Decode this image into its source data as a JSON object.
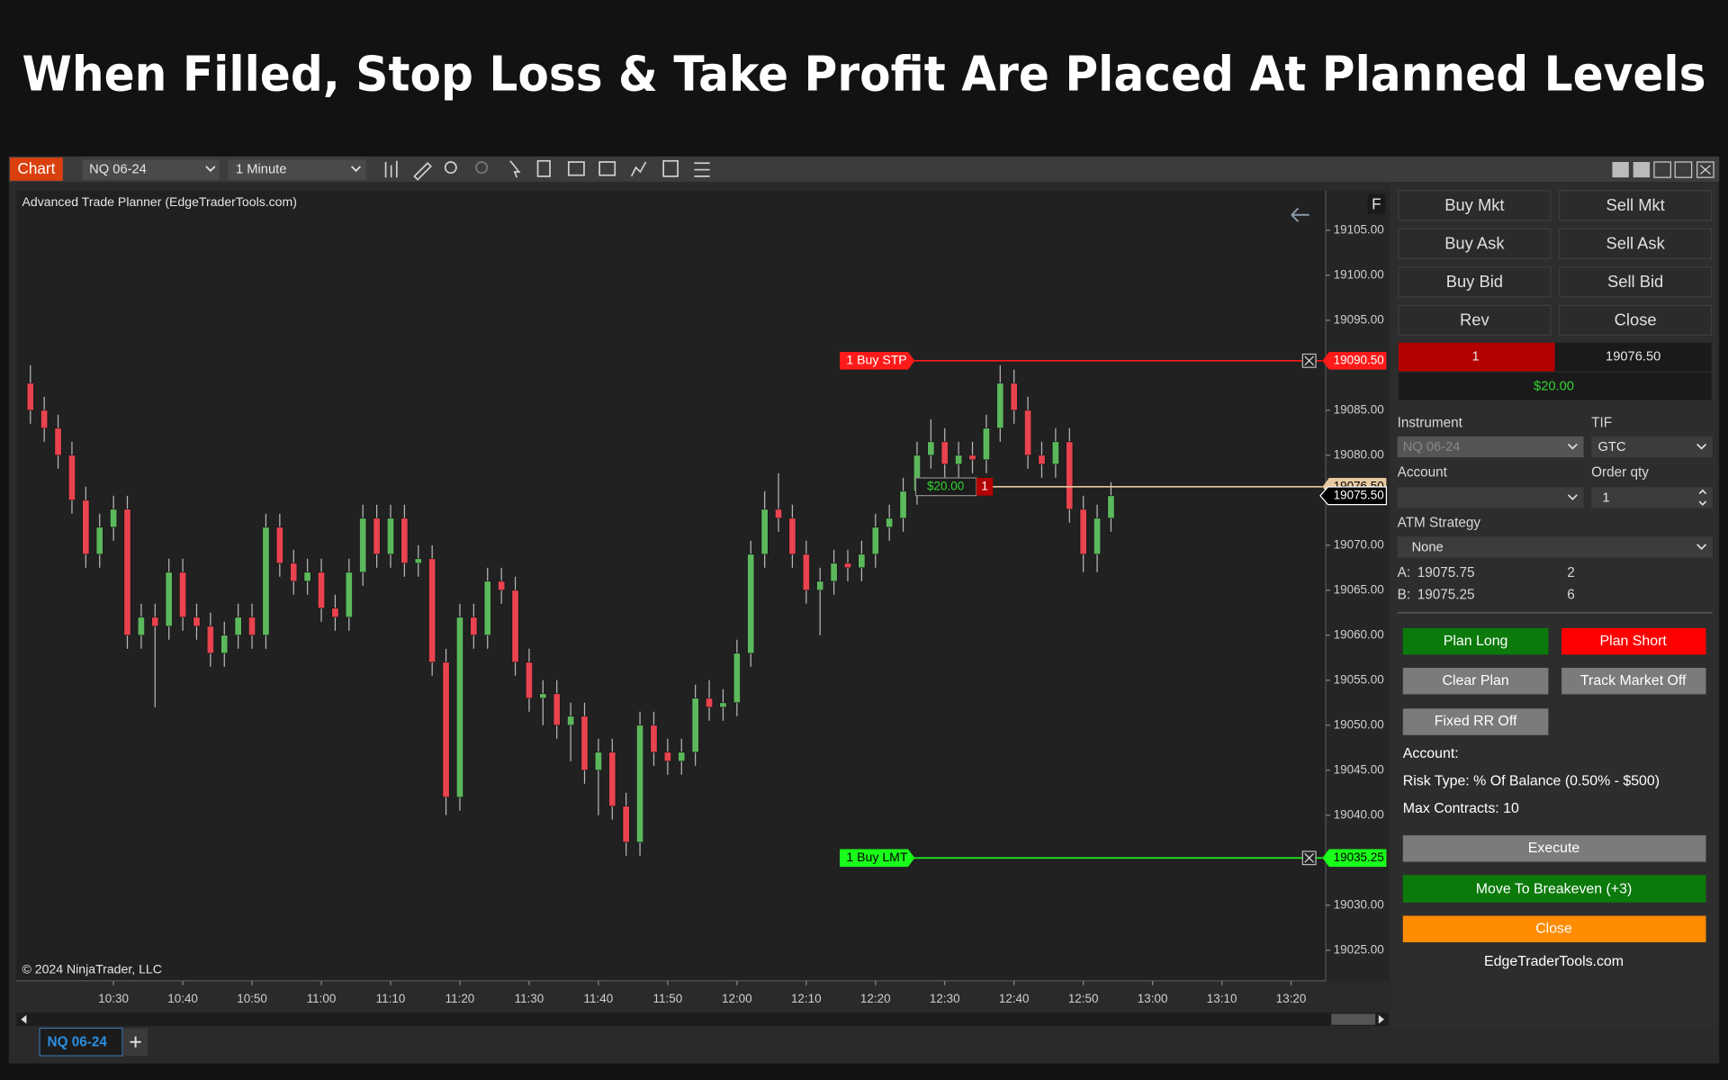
{
  "header": {
    "title": "When Filled, Stop Loss & Take Profit Are Placed At Planned Levels"
  },
  "window": {
    "tab": "Chart",
    "instrument": "NQ 06-24",
    "interval": "1 Minute",
    "indicator_label": "Advanced Trade Planner (EdgeTraderTools.com)",
    "copyright": "© 2024 NinjaTrader, LLC",
    "bottom_tab": "NQ 06-24",
    "f_label": "F"
  },
  "chart_data": {
    "type": "candlestick",
    "x": [
      "10:18",
      "10:20",
      "10:22",
      "10:24",
      "10:26",
      "10:28",
      "10:30",
      "10:32",
      "10:34",
      "10:36",
      "10:38",
      "10:40",
      "10:42",
      "10:44",
      "10:46",
      "10:48",
      "10:50",
      "10:52",
      "10:54",
      "10:56",
      "10:58",
      "11:00",
      "11:02",
      "11:04",
      "11:06",
      "11:08",
      "11:10",
      "11:12",
      "11:14",
      "11:16",
      "11:18",
      "11:20",
      "11:22",
      "11:24",
      "11:26",
      "11:28",
      "11:30",
      "11:32",
      "11:34",
      "11:36",
      "11:38",
      "11:40",
      "11:42",
      "11:44",
      "11:46",
      "11:48",
      "11:50",
      "11:52",
      "11:54",
      "11:56",
      "11:58",
      "12:00",
      "12:02",
      "12:04",
      "12:06",
      "12:08",
      "12:10",
      "12:12",
      "12:14",
      "12:16",
      "12:18",
      "12:20",
      "12:22",
      "12:24",
      "12:26",
      "12:28",
      "12:30",
      "12:32",
      "12:34",
      "12:36",
      "12:38",
      "12:40",
      "12:42",
      "12:44",
      "12:46",
      "12:48",
      "12:50",
      "12:52",
      "12:54"
    ],
    "open": [
      19088,
      19085,
      19083,
      19080,
      19075,
      19069,
      19072,
      19074,
      19060,
      19062,
      19061,
      19067,
      19062,
      19061,
      19058,
      19060,
      19062,
      19060,
      19072,
      19068,
      19066,
      19067,
      19063,
      19062,
      19067,
      19073,
      19069,
      19073,
      19068,
      19068.5,
      19057,
      19042,
      19062,
      19060,
      19066,
      19065,
      19057,
      19053,
      19053.5,
      19050,
      19051,
      19045,
      19047,
      19041,
      19037,
      19050,
      19047,
      19046,
      19047,
      19053,
      19052,
      19052.5,
      19058,
      19069,
      19074,
      19073,
      19069,
      19065,
      19066,
      19068,
      19067.5,
      19069,
      19072,
      19073,
      19076,
      19080,
      19081.5,
      19079,
      19080,
      19079.5,
      19083,
      19088,
      19085,
      19080,
      19079,
      19081.5,
      19074,
      19069,
      19073
    ],
    "high": [
      19090,
      19086.5,
      19084.5,
      19081.5,
      19076.5,
      19073.5,
      19075.5,
      19075.5,
      19063.5,
      19063.5,
      19068.5,
      19068.5,
      19063.5,
      19062.5,
      19061.5,
      19063.5,
      19063.5,
      19073.5,
      19073.5,
      19069.5,
      19068.5,
      19068.5,
      19064.5,
      19068.5,
      19074.5,
      19074.5,
      19074.5,
      19074.5,
      19070,
      19070,
      19058.5,
      19063.5,
      19063.5,
      19067.5,
      19067.5,
      19066.5,
      19058.5,
      19055,
      19055,
      19052.5,
      19052.5,
      19048.5,
      19048.5,
      19042.5,
      19051.5,
      19051.5,
      19048.5,
      19048.5,
      19054.5,
      19055,
      19054,
      19059.5,
      19070.5,
      19076,
      19078,
      19074.5,
      19070.5,
      19067.5,
      19069.5,
      19069.5,
      19070.5,
      19073.5,
      19074.5,
      19077.5,
      19081.5,
      19084,
      19083,
      19081.5,
      19081.5,
      19084.5,
      19090,
      19089.5,
      19086.5,
      19081.5,
      19083,
      19083,
      19075.5,
      19074.5,
      19077
    ],
    "low": [
      19083.5,
      19081.5,
      19078.5,
      19073.5,
      19067.5,
      19067.5,
      19070.5,
      19058.5,
      19058.5,
      19052,
      19059.5,
      19060.5,
      19059.5,
      19056.5,
      19056.5,
      19058.5,
      19058.5,
      19058.5,
      19066.5,
      19064.5,
      19064.5,
      19061.5,
      19060.5,
      19060.5,
      19065.5,
      19067.5,
      19067.5,
      19066.5,
      19066.5,
      19055.5,
      19040,
      19040.5,
      19058.5,
      19058.5,
      19063.5,
      19055.5,
      19051.5,
      19050,
      19048.5,
      19046,
      19043.5,
      19040,
      19039.5,
      19035.5,
      19035.5,
      19045.5,
      19044.5,
      19044.5,
      19045.5,
      19050.5,
      19050.5,
      19051,
      19056.5,
      19067.5,
      19071.5,
      19067.5,
      19063.5,
      19060,
      19064.5,
      19066,
      19066,
      19067.5,
      19070.5,
      19071.5,
      19074.5,
      19078.5,
      19077.5,
      19077.5,
      19078,
      19078,
      19081.5,
      19083.5,
      19078.5,
      19077.5,
      19077.5,
      19072.5,
      19067,
      19067,
      19071.5
    ],
    "close": [
      19085,
      19083,
      19080,
      19075,
      19069,
      19072,
      19074,
      19060,
      19062,
      19061,
      19067,
      19062,
      19061,
      19058,
      19060,
      19062,
      19060,
      19072,
      19068,
      19066,
      19067,
      19063,
      19062,
      19067,
      19073,
      19069,
      19073,
      19068,
      19068.5,
      19057,
      19042,
      19062,
      19060,
      19066,
      19065,
      19057,
      19053,
      19053.5,
      19050,
      19051,
      19045,
      19047,
      19041,
      19037,
      19050,
      19047,
      19046,
      19047,
      19053,
      19052,
      19052.5,
      19058,
      19069,
      19074,
      19073,
      19069,
      19065,
      19066,
      19068,
      19067.5,
      19069,
      19072,
      19073,
      19076,
      19080,
      19081.5,
      19079,
      19080,
      19079.5,
      19083,
      19088,
      19085,
      19080,
      19079,
      19081.5,
      19074,
      19069,
      19073,
      19075.5
    ],
    "up_color": "#5cb85c",
    "down_color": "#e8434e",
    "wick_color": "#b8b8b8",
    "xlim": [
      "10:16",
      "13:25"
    ],
    "xticks": [
      "10:30",
      "10:40",
      "10:50",
      "11:00",
      "11:10",
      "11:20",
      "11:30",
      "11:40",
      "11:50",
      "12:00",
      "12:10",
      "12:20",
      "12:30",
      "12:40",
      "12:50",
      "13:00",
      "13:10",
      "13:20"
    ],
    "ylim": [
      19021.6,
      19109.4
    ],
    "yticks": [
      {
        "value": 19105,
        "label": "19105.00"
      },
      {
        "value": 19100,
        "label": "19100.00"
      },
      {
        "value": 19095,
        "label": "19095.00"
      },
      {
        "value": 19090,
        "label": "19090.00"
      },
      {
        "value": 19085,
        "label": "19085.00"
      },
      {
        "value": 19080,
        "label": "19080.00"
      },
      {
        "value": 19075,
        "label": "19075.00"
      },
      {
        "value": 19070,
        "label": "19070.00"
      },
      {
        "value": 19065,
        "label": "19065.00"
      },
      {
        "value": 19060,
        "label": "19060.00"
      },
      {
        "value": 19055,
        "label": "19055.00"
      },
      {
        "value": 19050,
        "label": "19050.00"
      },
      {
        "value": 19045,
        "label": "19045.00"
      },
      {
        "value": 19040,
        "label": "19040.00"
      },
      {
        "value": 19035,
        "label": "19035.00"
      },
      {
        "value": 19030,
        "label": "19030.00"
      },
      {
        "value": 19025,
        "label": "19025.00"
      }
    ],
    "orders": [
      {
        "label": "1  Buy STP",
        "price": {
          "value": 19090.5,
          "label": "19090.50"
        },
        "color": "#ff1a1a"
      },
      {
        "label": "1  Buy LMT",
        "price": {
          "value": 19035.25,
          "label": "19035.25"
        },
        "color": "#1aff1a"
      }
    ],
    "position": {
      "price": {
        "value": 19076.5,
        "label": "19076.50"
      },
      "pnl": "$20.00",
      "qty": "1",
      "color": "#e8c9a0"
    },
    "last_price": {
      "value": 19075.5,
      "label": "19075.50"
    }
  },
  "panel": {
    "order_buttons": [
      [
        "Buy Mkt",
        "Sell Mkt"
      ],
      [
        "Buy Ask",
        "Sell Ask"
      ],
      [
        "Buy Bid",
        "Sell Bid"
      ],
      [
        "Rev",
        "Close"
      ]
    ],
    "position_qty": "1",
    "position_price": "19076.50",
    "pnl": "$20.00",
    "instrument_label": "Instrument",
    "instrument": "NQ 06-24",
    "tif_label": "TIF",
    "tif": "GTC",
    "account_label": "Account",
    "account": "",
    "order_qty_label": "Order qty",
    "order_qty": "1",
    "atm_label": "ATM Strategy",
    "atm": "None",
    "ask": {
      "label": "A:",
      "price": "19075.75",
      "size": "2"
    },
    "bid": {
      "label": "B:",
      "price": "19075.25",
      "size": "6"
    },
    "plan_long": "Plan Long",
    "plan_short": "Plan Short",
    "clear_plan": "Clear Plan",
    "track_market": "Track Market Off",
    "fixed_rr": "Fixed RR Off",
    "info": [
      "Account:",
      "Risk Type: % Of Balance (0.50% - $500)",
      "Max Contracts: 10"
    ],
    "execute": "Execute",
    "breakeven": "Move To Breakeven (+3)",
    "close": "Close",
    "footer": "EdgeTraderTools.com"
  }
}
